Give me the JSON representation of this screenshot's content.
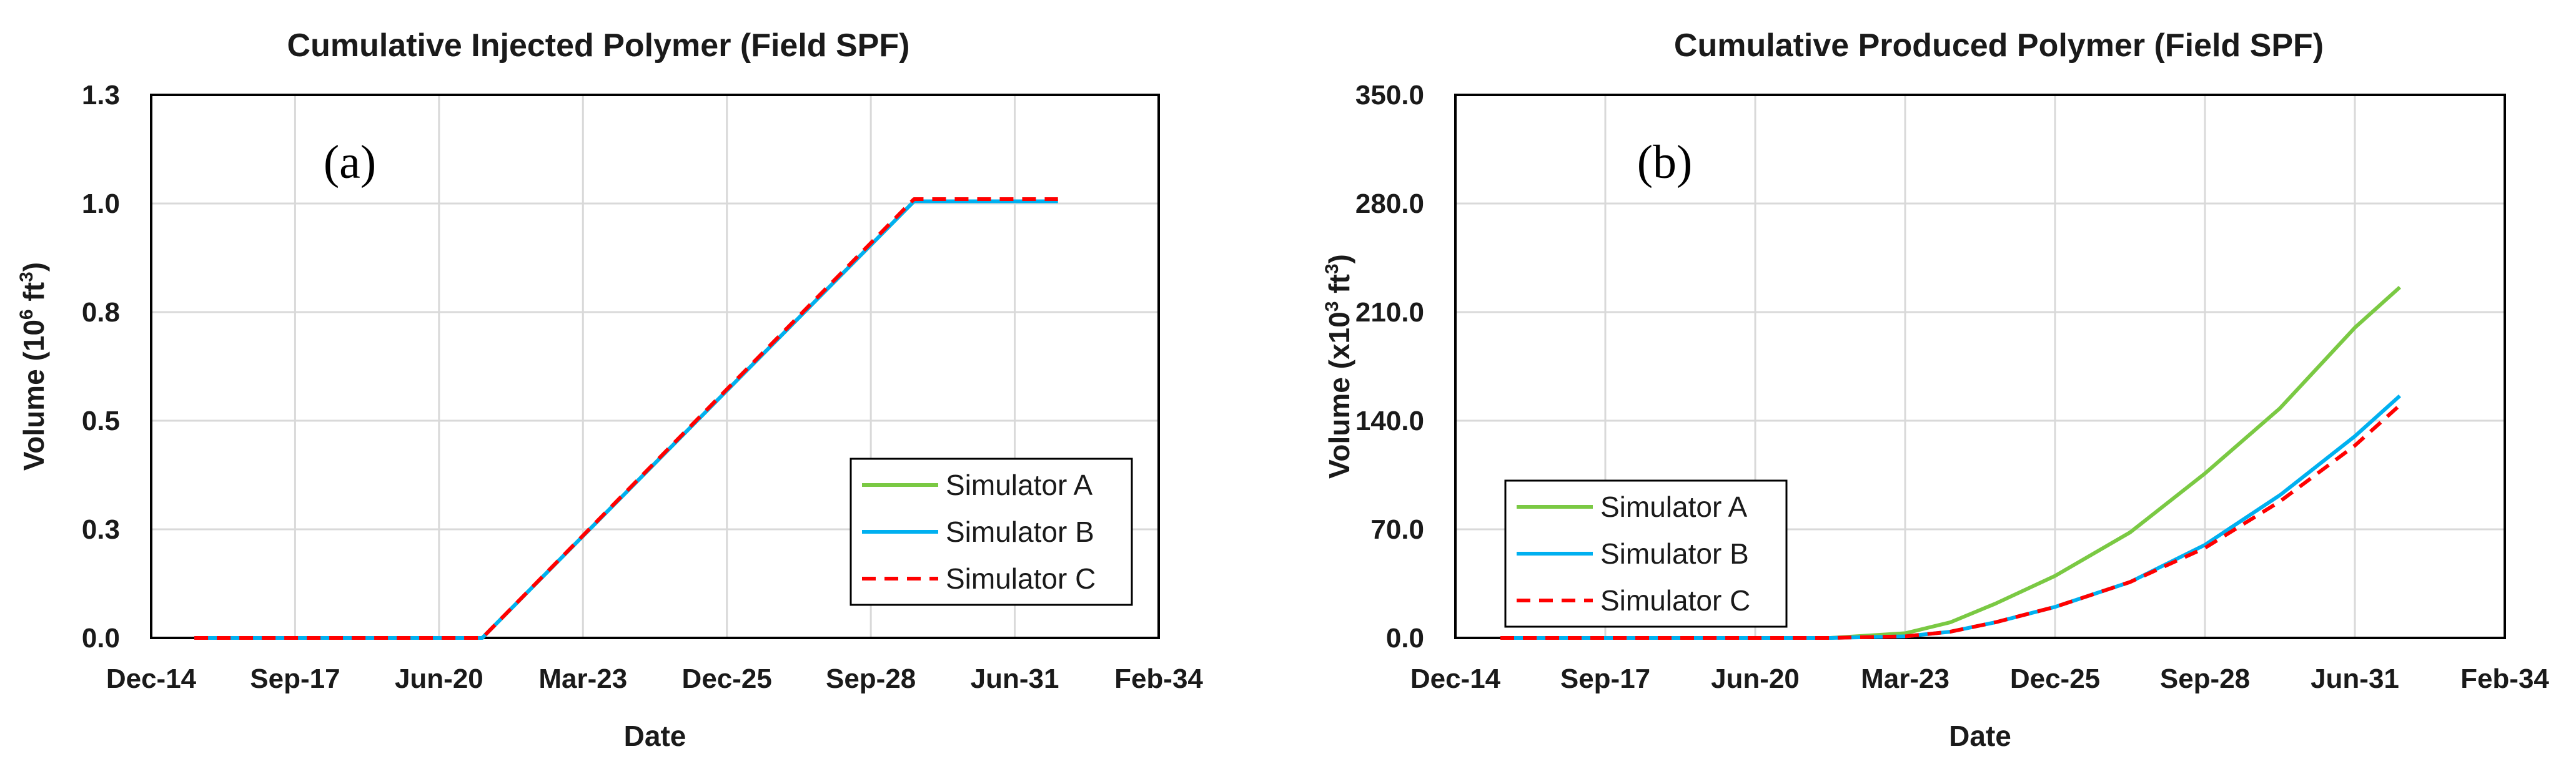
{
  "chart_data": [
    {
      "type": "line",
      "panel_label": "(a)",
      "title": "Cumulative Injected Polymer (Field SPF)",
      "xlabel": "Date",
      "ylabel_prefix": "Volume (10",
      "ylabel_sup": "6",
      "ylabel_mid": " ft",
      "ylabel_sup2": "3",
      "ylabel_suffix": ")",
      "x_ticks": [
        "Dec-14",
        "Sep-17",
        "Jun-20",
        "Mar-23",
        "Dec-25",
        "Sep-28",
        "Jun-31",
        "Feb-34"
      ],
      "y_ticks": [
        "0.0",
        "0.3",
        "0.5",
        "0.8",
        "1.0",
        "1.3"
      ],
      "xlim": [
        0,
        7
      ],
      "ylim": [
        0,
        1.25
      ],
      "legend_position": "bottom-right",
      "series": [
        {
          "name": "Simulator A",
          "color": "#7ac943",
          "dash": "",
          "x": [
            0.3,
            2.3,
            5.3,
            6.3
          ],
          "y": [
            0.0,
            0.0,
            1.005,
            1.005
          ]
        },
        {
          "name": "Simulator B",
          "color": "#00b0f0",
          "dash": "",
          "x": [
            0.3,
            2.3,
            5.3,
            6.3
          ],
          "y": [
            0.0,
            0.0,
            1.005,
            1.005
          ]
        },
        {
          "name": "Simulator C",
          "color": "#ff0000",
          "dash": "22,14",
          "x": [
            0.3,
            2.3,
            5.3,
            6.3
          ],
          "y": [
            0.0,
            0.0,
            1.01,
            1.01
          ]
        }
      ]
    },
    {
      "type": "line",
      "panel_label": "(b)",
      "title": "Cumulative Produced Polymer (Field SPF)",
      "xlabel": "Date",
      "ylabel_prefix": "Volume (x10",
      "ylabel_sup": "3",
      "ylabel_mid": " ft",
      "ylabel_sup2": "3",
      "ylabel_suffix": ")",
      "x_ticks": [
        "Dec-14",
        "Sep-17",
        "Jun-20",
        "Mar-23",
        "Dec-25",
        "Sep-28",
        "Jun-31",
        "Feb-34"
      ],
      "y_ticks": [
        "0.0",
        "70.0",
        "140.0",
        "210.0",
        "280.0",
        "350.0"
      ],
      "xlim": [
        0,
        7
      ],
      "ylim": [
        0,
        350
      ],
      "legend_position": "bottom-left",
      "series": [
        {
          "name": "Simulator A",
          "color": "#7ac943",
          "dash": "",
          "x": [
            0.3,
            2.5,
            3.0,
            3.3,
            3.6,
            4.0,
            4.5,
            5.0,
            5.5,
            6.0,
            6.3
          ],
          "y": [
            0,
            0,
            3,
            10,
            22,
            40,
            68,
            106,
            148,
            200,
            226
          ]
        },
        {
          "name": "Simulator B",
          "color": "#00b0f0",
          "dash": "",
          "x": [
            0.3,
            2.5,
            3.0,
            3.3,
            3.6,
            4.0,
            4.5,
            5.0,
            5.5,
            6.0,
            6.3
          ],
          "y": [
            0,
            0,
            1,
            4,
            10,
            20,
            36,
            60,
            92,
            130,
            156
          ]
        },
        {
          "name": "Simulator C",
          "color": "#ff0000",
          "dash": "22,14",
          "x": [
            0.3,
            2.5,
            3.0,
            3.3,
            3.6,
            4.0,
            4.5,
            5.0,
            5.5,
            6.0,
            6.3
          ],
          "y": [
            0,
            0,
            1,
            4,
            10,
            20,
            36,
            58,
            88,
            124,
            150
          ]
        }
      ]
    }
  ]
}
